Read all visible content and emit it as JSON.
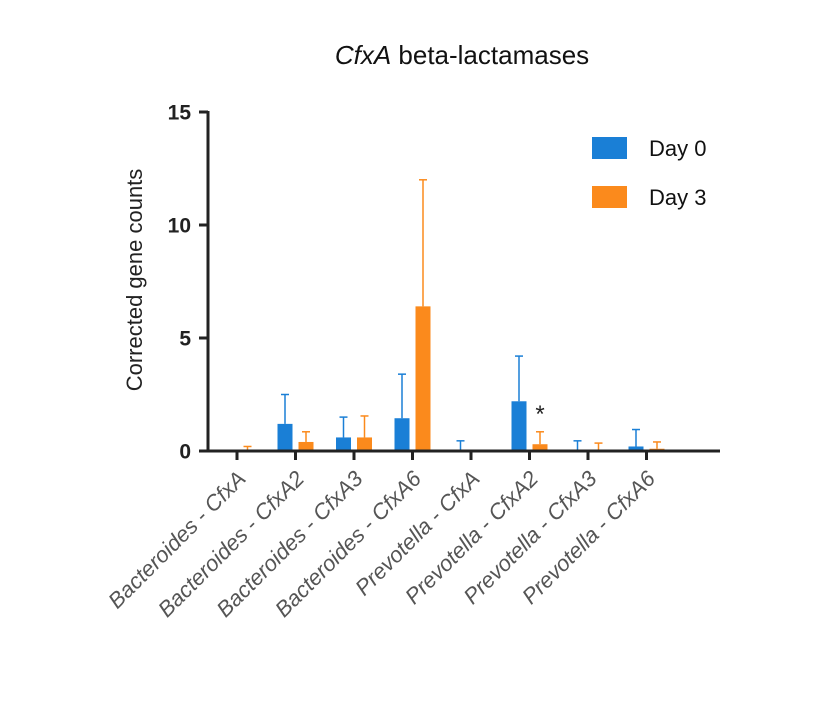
{
  "chart_data": {
    "type": "bar",
    "title_italic": "CfxA",
    "title_rest": " beta-lactamases",
    "ylabel": "Corrected gene counts",
    "xlabel": "",
    "ylim": [
      0,
      15
    ],
    "yticks": [
      0,
      5,
      10,
      15
    ],
    "grid": false,
    "legend_position": "top-right",
    "categories": [
      {
        "genus": "Bacteroides",
        "gene": "CfxA"
      },
      {
        "genus": "Bacteroides",
        "gene": "CfxA2"
      },
      {
        "genus": "Bacteroides",
        "gene": "CfxA3"
      },
      {
        "genus": "Bacteroides",
        "gene": "CfxA6"
      },
      {
        "genus": "Prevotella",
        "gene": "CfxA"
      },
      {
        "genus": "Prevotella",
        "gene": "CfxA2"
      },
      {
        "genus": "Prevotella",
        "gene": "CfxA3"
      },
      {
        "genus": "Prevotella",
        "gene": "CfxA6"
      }
    ],
    "label_separator": " - ",
    "series": [
      {
        "name": "Day 0",
        "color": "#1a7fd6",
        "values": [
          0.0,
          1.2,
          0.6,
          1.45,
          0.05,
          2.2,
          0.05,
          0.2
        ],
        "errors": [
          0.0,
          1.3,
          0.9,
          1.95,
          0.4,
          2.0,
          0.4,
          0.75
        ]
      },
      {
        "name": "Day 3",
        "color": "#fb8a1c",
        "values": [
          0.05,
          0.4,
          0.6,
          6.4,
          0.0,
          0.3,
          0.05,
          0.1
        ],
        "errors": [
          0.15,
          0.45,
          0.95,
          5.6,
          0.0,
          0.55,
          0.3,
          0.3
        ]
      }
    ],
    "annotations": [
      {
        "text": "*",
        "category_index": 5,
        "series_index": 1,
        "value": 1.9
      }
    ]
  }
}
